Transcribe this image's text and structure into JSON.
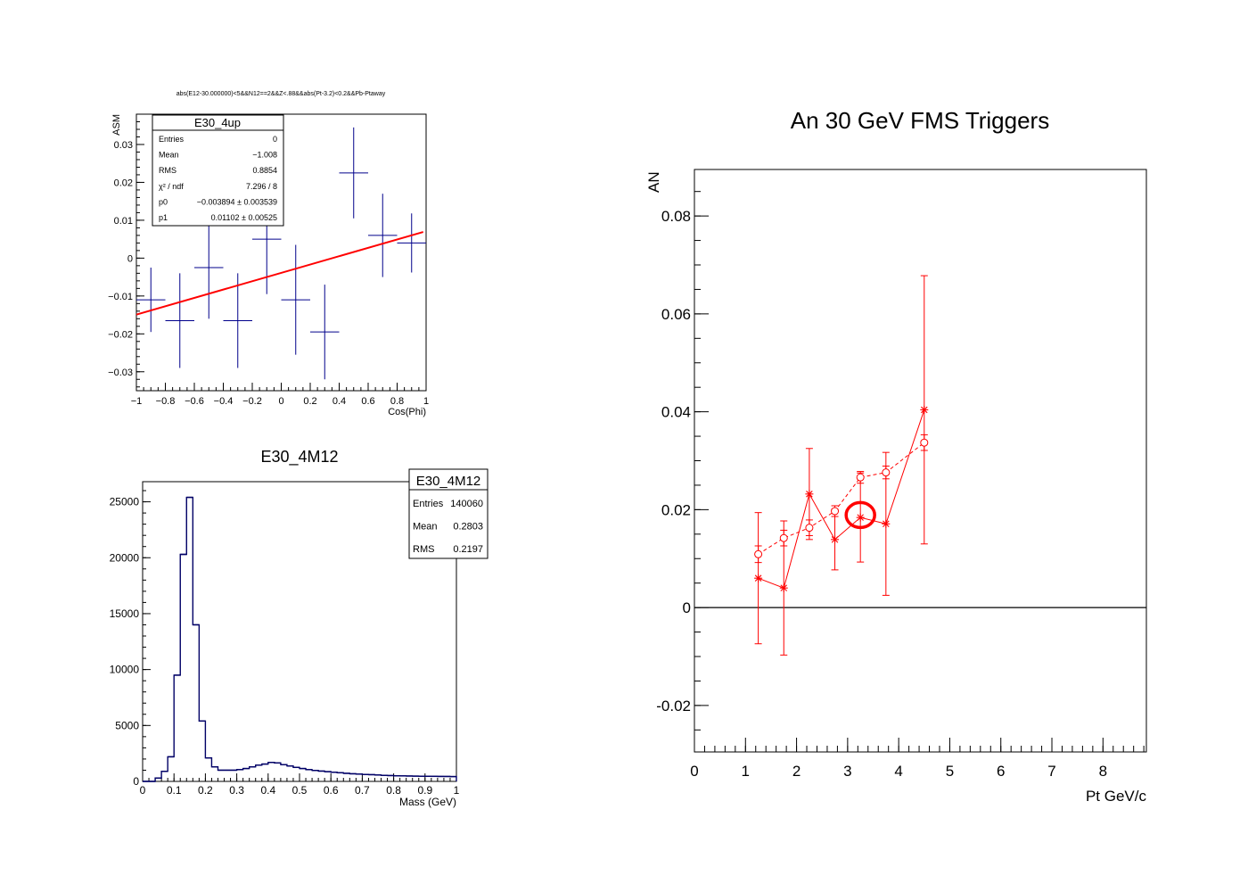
{
  "colors": {
    "axis": "#000000",
    "red": "#ff0000",
    "navy": "#00008b",
    "darkblue": "#000066"
  },
  "chart_data": [
    {
      "id": "asm",
      "type": "scatter",
      "title": "abs(E12-30.000000)<5&&N12==2&&Z<.88&&abs(Pt-3.2)<0.2&&Pb-Ptaway",
      "xlabel": "Cos(Phi)",
      "ylabel": "ASM",
      "xlim": [
        -1,
        1
      ],
      "ylim": [
        -0.035,
        0.038
      ],
      "xticks": [
        -1,
        -0.8,
        -0.6,
        -0.4,
        -0.2,
        0,
        0.2,
        0.4,
        0.6,
        0.8,
        1
      ],
      "xtick_labels": [
        "−1",
        "−0.8",
        "−0.6",
        "−0.4",
        "−0.2",
        "0",
        "0.2",
        "0.4",
        "0.6",
        "0.8",
        "1"
      ],
      "yticks": [
        -0.03,
        -0.02,
        -0.01,
        0,
        0.01,
        0.02,
        0.03
      ],
      "ytick_labels": [
        "−0.03",
        "−0.02",
        "−0.01",
        "0",
        "0.01",
        "0.02",
        "0.03"
      ],
      "points": [
        {
          "x": -0.9,
          "y": -0.011,
          "err": 0.0085,
          "xerr": 0.1
        },
        {
          "x": -0.7,
          "y": -0.0165,
          "err": 0.0125,
          "xerr": 0.1
        },
        {
          "x": -0.5,
          "y": -0.0025,
          "err": 0.0135,
          "xerr": 0.1
        },
        {
          "x": -0.3,
          "y": -0.0165,
          "err": 0.0125,
          "xerr": 0.1
        },
        {
          "x": -0.1,
          "y": 0.005,
          "err": 0.0145,
          "xerr": 0.1
        },
        {
          "x": 0.1,
          "y": -0.011,
          "err": 0.0145,
          "xerr": 0.1
        },
        {
          "x": 0.3,
          "y": -0.0195,
          "err": 0.0125,
          "xerr": 0.1
        },
        {
          "x": 0.5,
          "y": 0.0225,
          "err": 0.012,
          "xerr": 0.1
        },
        {
          "x": 0.7,
          "y": 0.006,
          "err": 0.011,
          "xerr": 0.1
        },
        {
          "x": 0.9,
          "y": 0.004,
          "err": 0.0078,
          "xerr": 0.1
        }
      ],
      "fit": {
        "p0": -0.003894,
        "p1": 0.01102,
        "xmin": -1,
        "xmax": 0.98
      },
      "stats": {
        "name": "E30_4up",
        "rows": [
          {
            "label": "Entries",
            "value": "0"
          },
          {
            "label": "Mean",
            "value": "−1.008"
          },
          {
            "label": "RMS",
            "value": "0.8854"
          },
          {
            "label": "χ² / ndf",
            "value": "7.296 / 8"
          },
          {
            "label": "p0",
            "value": "−0.003894 ± 0.003539"
          },
          {
            "label": "p1",
            "value": "0.01102 ± 0.00525"
          }
        ]
      }
    },
    {
      "id": "mass",
      "type": "bar",
      "title": "E30_4M12",
      "xlabel": "Mass (GeV)",
      "ylabel": "",
      "xlim": [
        0,
        1
      ],
      "ylim": [
        0,
        26800
      ],
      "xticks": [
        0,
        0.1,
        0.2,
        0.3,
        0.4,
        0.5,
        0.6,
        0.7,
        0.8,
        0.9,
        1
      ],
      "xtick_labels": [
        "0",
        "0.1",
        "0.2",
        "0.3",
        "0.4",
        "0.5",
        "0.6",
        "0.7",
        "0.8",
        "0.9",
        "1"
      ],
      "yticks": [
        0,
        5000,
        10000,
        15000,
        20000,
        25000
      ],
      "ytick_labels": [
        "0",
        "5000",
        "10000",
        "15000",
        "20000",
        "25000"
      ],
      "bin_width": 0.02,
      "values": [
        0,
        0,
        300,
        900,
        2200,
        9500,
        20300,
        25400,
        14000,
        5400,
        2100,
        1300,
        1000,
        1000,
        1000,
        1050,
        1150,
        1300,
        1450,
        1550,
        1700,
        1650,
        1500,
        1380,
        1250,
        1150,
        1050,
        980,
        920,
        870,
        820,
        770,
        720,
        680,
        650,
        620,
        600,
        570,
        540,
        520,
        500,
        490,
        480,
        470,
        460,
        455,
        450,
        445,
        440,
        430
      ],
      "stats": {
        "name": "E30_4M12",
        "rows": [
          {
            "label": "Entries",
            "value": "140060"
          },
          {
            "label": "Mean",
            "value": "0.2803"
          },
          {
            "label": "RMS",
            "value": "0.2197"
          }
        ]
      }
    },
    {
      "id": "an",
      "type": "line",
      "title": "An 30 GeV FMS Triggers",
      "xlabel": "Pt GeV/c",
      "ylabel": "AN",
      "xlim": [
        0,
        8.85
      ],
      "ylim": [
        -0.0295,
        0.0895
      ],
      "xticks": [
        0,
        1,
        2,
        3,
        4,
        5,
        6,
        7,
        8
      ],
      "xtick_labels": [
        "0",
        "1",
        "2",
        "3",
        "4",
        "5",
        "6",
        "7",
        "8"
      ],
      "yticks": [
        -0.02,
        0,
        0.02,
        0.04,
        0.06,
        0.08
      ],
      "ytick_labels": [
        "-0.02",
        "0",
        "0.02",
        "0.04",
        "0.06",
        "0.08"
      ],
      "series": [
        {
          "style": "solid",
          "marker": "star",
          "x": [
            1.25,
            1.75,
            2.25,
            2.75,
            3.25,
            3.75,
            4.5
          ],
          "y": [
            0.006,
            0.004,
            0.0232,
            0.0139,
            0.0184,
            0.0171,
            0.0404
          ],
          "err": [
            0.0134,
            0.0137,
            0.0093,
            0.0062,
            0.0091,
            0.0146,
            0.0274
          ]
        },
        {
          "style": "dashed",
          "marker": "circle",
          "x": [
            1.25,
            1.75,
            2.25,
            2.75,
            3.25,
            3.75,
            4.5
          ],
          "y": [
            0.0109,
            0.0142,
            0.0163,
            0.0197,
            0.0266,
            0.0276,
            0.0337
          ],
          "err": [
            0.0017,
            0.0016,
            0.0016,
            0.0011,
            0.0012,
            0.0013,
            0.0016
          ]
        }
      ],
      "annotation": {
        "type": "circle",
        "x": 3.25,
        "y": 0.0189
      }
    }
  ]
}
